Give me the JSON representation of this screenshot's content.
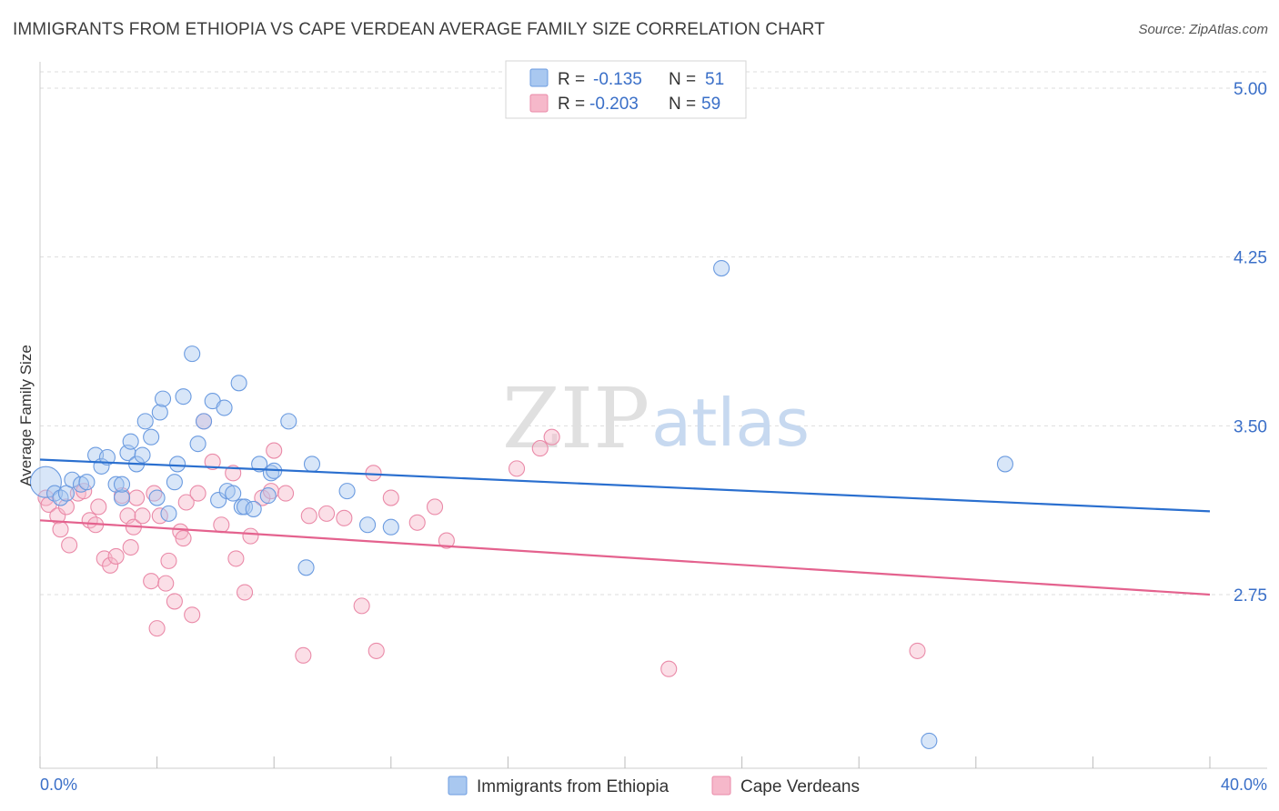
{
  "title": "IMMIGRANTS FROM ETHIOPIA VS CAPE VERDEAN AVERAGE FAMILY SIZE CORRELATION CHART",
  "source": "Source: ZipAtlas.com",
  "watermark": {
    "zip": "ZIP",
    "atlas": "atlas"
  },
  "colors": {
    "blue_fill": "#a9c8f0",
    "blue_stroke": "#6b9be0",
    "blue_line": "#2a6fcf",
    "pink_fill": "#f6b8ca",
    "pink_stroke": "#ea8aa8",
    "pink_line": "#e4628e",
    "tick_text": "#3a6fc8",
    "grid": "#dddddd"
  },
  "legend_top": {
    "rows": [
      {
        "r_label": "R =",
        "r_value": "-0.135",
        "n_label": "N =",
        "n_value": "51"
      },
      {
        "r_label": "R =",
        "r_value": "-0.203",
        "n_label": "N =",
        "n_value": "59"
      }
    ]
  },
  "chart_data": {
    "type": "scatter",
    "title": "IMMIGRANTS FROM ETHIOPIA VS CAPE VERDEAN AVERAGE FAMILY SIZE CORRELATION CHART",
    "xlabel": "",
    "ylabel": "Average Family Size",
    "xlim": [
      0,
      40
    ],
    "ylim": [
      2.0,
      5.1
    ],
    "x_tick_labels": [
      "0.0%",
      "40.0%"
    ],
    "y_ticks": [
      5.0,
      4.25,
      3.5,
      2.75
    ],
    "y_tick_labels": [
      "5.00",
      "4.25",
      "3.50",
      "2.75"
    ],
    "grid": true,
    "legend_position": "top-center",
    "series": [
      {
        "name": "Immigrants from Ethiopia",
        "R": -0.135,
        "N": 51,
        "trend": [
          [
            0,
            3.35
          ],
          [
            40,
            3.12
          ]
        ],
        "points": [
          [
            0.2,
            3.25
          ],
          [
            0.5,
            3.2
          ],
          [
            0.7,
            3.18
          ],
          [
            0.9,
            3.2
          ],
          [
            1.1,
            3.26
          ],
          [
            1.4,
            3.24
          ],
          [
            1.6,
            3.25
          ],
          [
            1.9,
            3.37
          ],
          [
            2.1,
            3.32
          ],
          [
            2.3,
            3.36
          ],
          [
            2.6,
            3.24
          ],
          [
            2.8,
            3.18
          ],
          [
            2.8,
            3.24
          ],
          [
            3.0,
            3.38
          ],
          [
            3.1,
            3.43
          ],
          [
            3.3,
            3.33
          ],
          [
            3.5,
            3.37
          ],
          [
            3.6,
            3.52
          ],
          [
            3.8,
            3.45
          ],
          [
            4.0,
            3.18
          ],
          [
            4.1,
            3.56
          ],
          [
            4.2,
            3.62
          ],
          [
            4.4,
            3.11
          ],
          [
            4.6,
            3.25
          ],
          [
            4.7,
            3.33
          ],
          [
            4.9,
            3.63
          ],
          [
            5.2,
            3.82
          ],
          [
            5.4,
            3.42
          ],
          [
            5.6,
            3.52
          ],
          [
            5.9,
            3.61
          ],
          [
            6.1,
            3.17
          ],
          [
            6.3,
            3.58
          ],
          [
            6.4,
            3.21
          ],
          [
            6.6,
            3.2
          ],
          [
            6.8,
            3.69
          ],
          [
            6.9,
            3.14
          ],
          [
            7.0,
            3.14
          ],
          [
            7.3,
            3.13
          ],
          [
            7.5,
            3.33
          ],
          [
            7.8,
            3.19
          ],
          [
            7.9,
            3.29
          ],
          [
            8.0,
            3.3
          ],
          [
            8.5,
            3.52
          ],
          [
            9.1,
            2.87
          ],
          [
            9.3,
            3.33
          ],
          [
            10.5,
            3.21
          ],
          [
            11.2,
            3.06
          ],
          [
            12.0,
            3.05
          ],
          [
            23.3,
            4.2
          ],
          [
            30.4,
            2.1
          ],
          [
            33.0,
            3.33
          ]
        ]
      },
      {
        "name": "Cape Verdeans",
        "R": -0.203,
        "N": 59,
        "trend": [
          [
            0,
            3.08
          ],
          [
            40,
            2.75
          ]
        ],
        "points": [
          [
            0.2,
            3.18
          ],
          [
            0.3,
            3.15
          ],
          [
            0.6,
            3.1
          ],
          [
            0.7,
            3.04
          ],
          [
            0.9,
            3.14
          ],
          [
            1.0,
            2.97
          ],
          [
            1.3,
            3.2
          ],
          [
            1.5,
            3.21
          ],
          [
            1.7,
            3.08
          ],
          [
            1.9,
            3.06
          ],
          [
            2.0,
            3.14
          ],
          [
            2.2,
            2.91
          ],
          [
            2.4,
            2.88
          ],
          [
            2.6,
            2.92
          ],
          [
            2.8,
            3.19
          ],
          [
            3.0,
            3.1
          ],
          [
            3.1,
            2.96
          ],
          [
            3.2,
            3.05
          ],
          [
            3.3,
            3.18
          ],
          [
            3.5,
            3.1
          ],
          [
            3.8,
            2.81
          ],
          [
            3.9,
            3.2
          ],
          [
            4.0,
            2.6
          ],
          [
            4.1,
            3.1
          ],
          [
            4.3,
            2.8
          ],
          [
            4.4,
            2.9
          ],
          [
            4.6,
            2.72
          ],
          [
            4.8,
            3.03
          ],
          [
            4.9,
            3.0
          ],
          [
            5.0,
            3.16
          ],
          [
            5.2,
            2.66
          ],
          [
            5.4,
            3.2
          ],
          [
            5.6,
            3.52
          ],
          [
            5.9,
            3.34
          ],
          [
            6.2,
            3.06
          ],
          [
            6.6,
            3.29
          ],
          [
            6.7,
            2.91
          ],
          [
            7.0,
            2.76
          ],
          [
            7.2,
            3.01
          ],
          [
            7.6,
            3.18
          ],
          [
            7.9,
            3.21
          ],
          [
            8.0,
            3.39
          ],
          [
            8.4,
            3.2
          ],
          [
            9.0,
            2.48
          ],
          [
            9.2,
            3.1
          ],
          [
            9.8,
            3.11
          ],
          [
            10.4,
            3.09
          ],
          [
            11.0,
            2.7
          ],
          [
            11.4,
            3.29
          ],
          [
            11.5,
            2.5
          ],
          [
            12.0,
            3.18
          ],
          [
            12.9,
            3.07
          ],
          [
            13.5,
            3.14
          ],
          [
            13.9,
            2.99
          ],
          [
            16.3,
            3.31
          ],
          [
            17.1,
            3.4
          ],
          [
            17.5,
            3.45
          ],
          [
            21.5,
            2.42
          ],
          [
            30.0,
            2.5
          ]
        ]
      }
    ]
  },
  "legend_bottom": {
    "items": [
      {
        "label": "Immigrants from Ethiopia"
      },
      {
        "label": "Cape Verdeans"
      }
    ]
  }
}
